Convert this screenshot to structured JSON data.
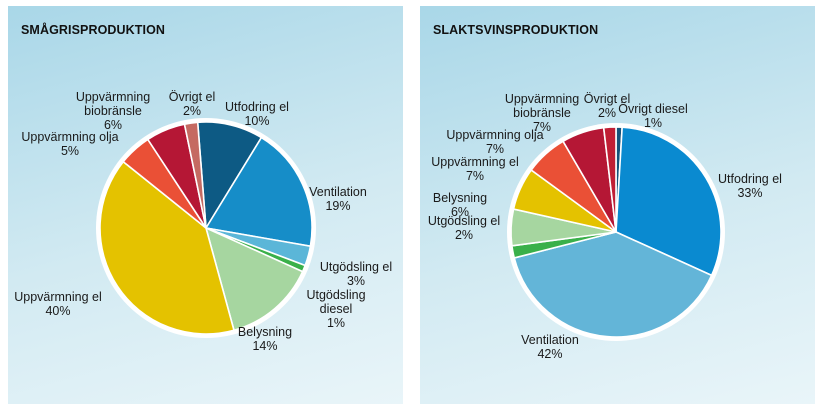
{
  "chart_data": [
    {
      "type": "pie",
      "title": "SMÅGRISPRODUKTION",
      "slices": [
        {
          "label": [
            "Utfodring el"
          ],
          "pct": "10%",
          "value": 10,
          "color": "#0d5a84"
        },
        {
          "label": [
            "Ventilation"
          ],
          "pct": "19%",
          "value": 19,
          "color": "#168dc8"
        },
        {
          "label": [
            "Utgödsling el"
          ],
          "pct": "3%",
          "value": 3,
          "color": "#5bb6d8"
        },
        {
          "label": [
            "Utgödsling",
            "diesel"
          ],
          "pct": "1%",
          "value": 1,
          "color": "#3ab04a"
        },
        {
          "label": [
            "Belysning"
          ],
          "pct": "14%",
          "value": 14,
          "color": "#a6d6a0"
        },
        {
          "label": [
            "Uppvärmning el"
          ],
          "pct": "40%",
          "value": 40,
          "color": "#e4c200"
        },
        {
          "label": [
            "Uppvärmning olja"
          ],
          "pct": "5%",
          "value": 5,
          "color": "#ea5036"
        },
        {
          "label": [
            "Uppvärmning",
            "biobränsle"
          ],
          "pct": "6%",
          "value": 6,
          "color": "#b51735"
        },
        {
          "label": [
            "Övrigt el"
          ],
          "pct": "2%",
          "value": 2,
          "color": "#c56a62"
        }
      ]
    },
    {
      "type": "pie",
      "title": "SLAKTSVINSPRODUKTION",
      "slices": [
        {
          "label": [
            "Övrigt diesel"
          ],
          "pct": "1%",
          "value": 1,
          "color": "#15527a"
        },
        {
          "label": [
            "Utfodring el"
          ],
          "pct": "33%",
          "value": 33,
          "color": "#0a8ad0"
        },
        {
          "label": [
            "Ventilation"
          ],
          "pct": "42%",
          "value": 42,
          "color": "#63b5d8"
        },
        {
          "label": [
            "Utgödsling el"
          ],
          "pct": "2%",
          "value": 2,
          "color": "#3ab04a"
        },
        {
          "label": [
            "Belysning"
          ],
          "pct": "6%",
          "value": 6,
          "color": "#a6d6a0"
        },
        {
          "label": [
            "Uppvärmning el"
          ],
          "pct": "7%",
          "value": 7,
          "color": "#e4c200"
        },
        {
          "label": [
            "Uppvärmning olja"
          ],
          "pct": "7%",
          "value": 7,
          "color": "#ea5036"
        },
        {
          "label": [
            "Uppvärmning",
            "biobränsle"
          ],
          "pct": "7%",
          "value": 7,
          "color": "#b51735"
        },
        {
          "label": [
            "Övrigt el"
          ],
          "pct": "2%",
          "value": 2,
          "color": "#c01f35"
        }
      ]
    }
  ]
}
